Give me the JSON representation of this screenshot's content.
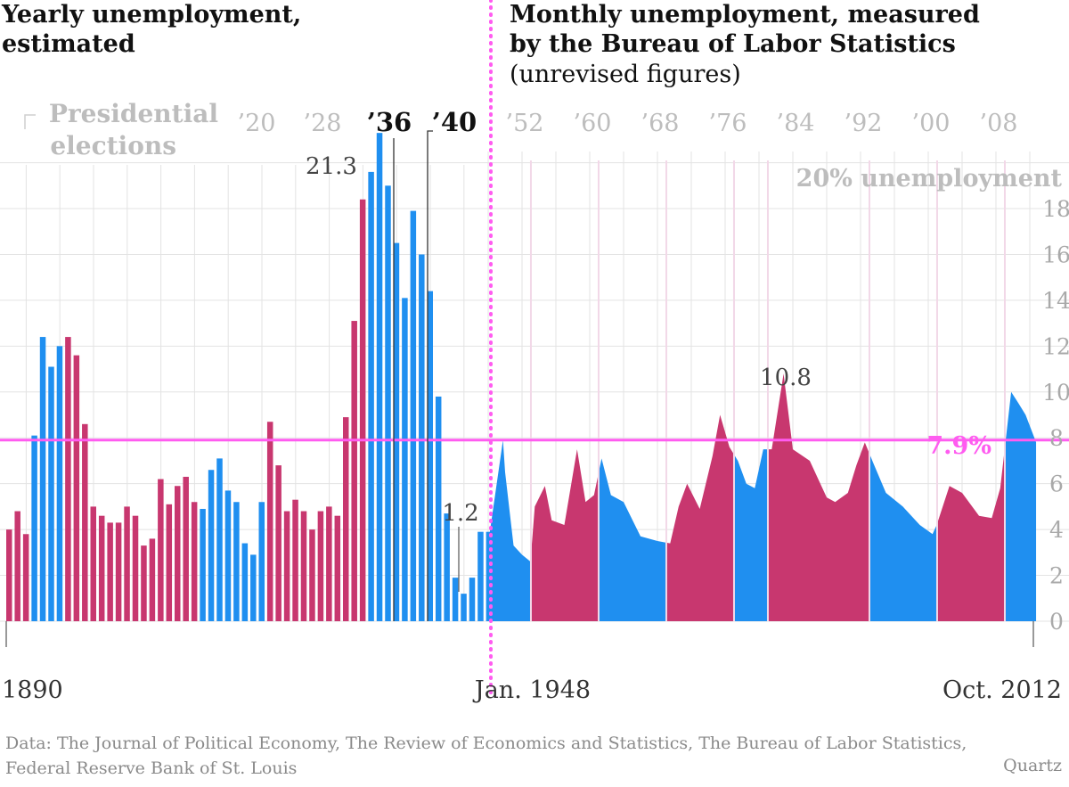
{
  "titles": {
    "left": [
      "Yearly unemployment,",
      "estimated"
    ],
    "right": [
      "Monthly unemployment, measured",
      "by the Bureau of Labor Statistics"
    ],
    "right_sub": "(unrevised figures)"
  },
  "source": "Data: The Journal of Political Economy, The Review of Economics and Statistics, The Bureau of Labor Statistics, Federal Reserve Bank of St. Louis",
  "brand": "Quartz",
  "colors": {
    "dem": "#1f8ff0",
    "rep": "#c8376f",
    "reference": "#ff5cf0",
    "grid": "#e3e3e3",
    "muted": "#bdbdbd",
    "text": "#333333"
  },
  "chart_data": {
    "type": "bar",
    "yaxis": {
      "range": [
        0,
        20
      ],
      "ticks": [
        "0",
        "2",
        "4",
        "6",
        "8",
        "10",
        "12",
        "14",
        "16",
        "18"
      ],
      "top_label": "20% unemployment"
    },
    "legend": {
      "label": [
        "Presidential",
        "elections"
      ]
    },
    "election_labels_yearly": [
      "’20",
      "’28",
      "’36",
      "’40"
    ],
    "election_labels_monthly": [
      "’52",
      "’60",
      "’68",
      "’76",
      "’84",
      "’92",
      "’00",
      "’08"
    ],
    "x_labels": [
      "1890",
      "Jan. 1948",
      "Oct. 2012"
    ],
    "reference": {
      "value": 7.9,
      "label": "7.9%"
    },
    "annotations": [
      {
        "text": "21.3"
      },
      {
        "text": "1.2"
      },
      {
        "text": "10.8"
      }
    ],
    "yearly": {
      "years": [
        1890,
        1891,
        1892,
        1893,
        1894,
        1895,
        1896,
        1897,
        1898,
        1899,
        1900,
        1901,
        1902,
        1903,
        1904,
        1905,
        1906,
        1907,
        1908,
        1909,
        1910,
        1911,
        1912,
        1913,
        1914,
        1915,
        1916,
        1917,
        1918,
        1919,
        1920,
        1921,
        1922,
        1923,
        1924,
        1925,
        1926,
        1927,
        1928,
        1929,
        1930,
        1931,
        1932,
        1933,
        1934,
        1935,
        1936,
        1937,
        1938,
        1939,
        1940,
        1941,
        1942,
        1943,
        1944,
        1945,
        1946,
        1947
      ],
      "values": [
        4.0,
        4.8,
        3.8,
        8.1,
        12.4,
        11.1,
        12.0,
        12.4,
        11.6,
        8.6,
        5.0,
        4.6,
        4.3,
        4.3,
        5.0,
        4.6,
        3.3,
        3.6,
        6.2,
        5.1,
        5.9,
        6.3,
        5.2,
        4.9,
        6.6,
        7.1,
        5.7,
        5.2,
        3.4,
        2.9,
        5.2,
        8.7,
        6.8,
        4.8,
        5.3,
        4.8,
        4.0,
        4.8,
        5.0,
        4.6,
        8.9,
        13.1,
        18.4,
        19.6,
        21.3,
        19.0,
        16.5,
        14.1,
        17.9,
        16.0,
        14.4,
        9.8,
        4.7,
        1.9,
        1.2,
        1.9,
        3.9,
        3.9
      ],
      "party": [
        "R",
        "R",
        "R",
        "D",
        "D",
        "D",
        "D",
        "R",
        "R",
        "R",
        "R",
        "R",
        "R",
        "R",
        "R",
        "R",
        "R",
        "R",
        "R",
        "R",
        "R",
        "R",
        "R",
        "D",
        "D",
        "D",
        "D",
        "D",
        "D",
        "D",
        "D",
        "R",
        "R",
        "R",
        "R",
        "R",
        "R",
        "R",
        "R",
        "R",
        "R",
        "R",
        "R",
        "D",
        "D",
        "D",
        "D",
        "D",
        "D",
        "D",
        "D",
        "D",
        "D",
        "D",
        "D",
        "D",
        "D",
        "D"
      ]
    },
    "monthly": {
      "x": [
        1948.0,
        1949.75,
        1950.0,
        1951.0,
        1952.0,
        1953.0,
        1953.5,
        1954.7,
        1955.5,
        1957.0,
        1958.5,
        1959.5,
        1960.5,
        1961.4,
        1962.5,
        1964.0,
        1966.0,
        1968.0,
        1969.5,
        1970.5,
        1971.5,
        1973.0,
        1974.5,
        1975.4,
        1976.5,
        1977.5,
        1978.5,
        1979.5,
        1980.5,
        1981.5,
        1982.9,
        1984.0,
        1986.0,
        1988.0,
        1989.0,
        1990.5,
        1991.5,
        1992.5,
        1993.5,
        1995.0,
        1997.0,
        1999.0,
        2000.5,
        2001.0,
        2002.5,
        2004.0,
        2006.0,
        2007.5,
        2008.5,
        2009.8,
        2010.5,
        2011.5,
        2012.75
      ],
      "values": [
        3.4,
        7.9,
        6.5,
        3.3,
        2.9,
        2.6,
        5.0,
        5.9,
        4.4,
        4.2,
        7.5,
        5.2,
        5.5,
        7.1,
        5.5,
        5.2,
        3.7,
        3.5,
        3.4,
        5.0,
        6.0,
        4.9,
        7.2,
        9.0,
        7.6,
        7.0,
        6.0,
        5.8,
        7.5,
        7.5,
        10.8,
        7.5,
        7.0,
        5.4,
        5.2,
        5.6,
        6.8,
        7.8,
        6.9,
        5.6,
        5.0,
        4.2,
        3.8,
        4.2,
        5.9,
        5.6,
        4.6,
        4.5,
        5.8,
        10.0,
        9.6,
        9.0,
        7.8
      ]
    },
    "admins_monthly": [
      {
        "start": 1948.0,
        "end": 1953.05,
        "party": "D"
      },
      {
        "start": 1953.05,
        "end": 1961.05,
        "party": "R"
      },
      {
        "start": 1961.05,
        "end": 1969.05,
        "party": "D"
      },
      {
        "start": 1969.05,
        "end": 1977.05,
        "party": "R"
      },
      {
        "start": 1977.05,
        "end": 1981.05,
        "party": "D"
      },
      {
        "start": 1981.05,
        "end": 1993.05,
        "party": "R"
      },
      {
        "start": 1993.05,
        "end": 2001.05,
        "party": "D"
      },
      {
        "start": 2001.05,
        "end": 2009.05,
        "party": "R"
      },
      {
        "start": 2009.05,
        "end": 2012.76,
        "party": "D"
      }
    ]
  }
}
